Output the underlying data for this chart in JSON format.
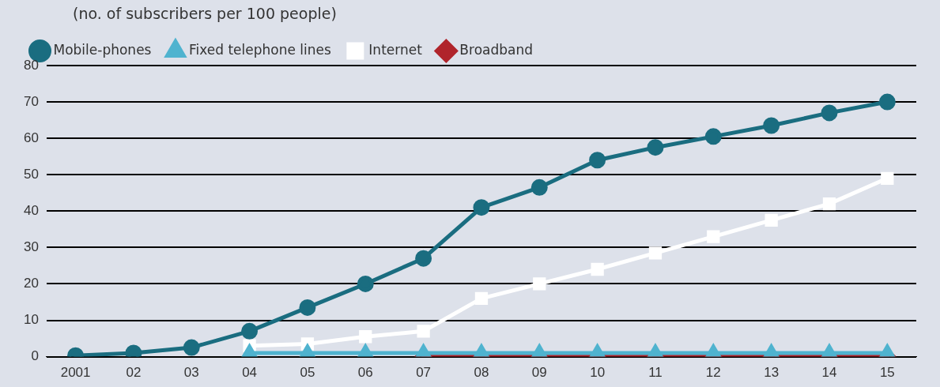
{
  "chart_data": {
    "type": "line",
    "subtitle": "(no. of subscribers per 100 people)",
    "categories": [
      "2001",
      "02",
      "03",
      "04",
      "05",
      "06",
      "07",
      "08",
      "09",
      "10",
      "11",
      "12",
      "13",
      "14",
      "15"
    ],
    "series": [
      {
        "name": "Mobile-phones",
        "color": "#1a6d80",
        "marker": "circle",
        "values": [
          0.3,
          1,
          2.5,
          7,
          13.5,
          20,
          27,
          41,
          46.5,
          54,
          57.5,
          60.5,
          63.5,
          67,
          70
        ]
      },
      {
        "name": "Fixed telephone lines",
        "color": "#4fb3cf",
        "marker": "triangle",
        "values": [
          null,
          null,
          null,
          1,
          1,
          1,
          1,
          1,
          1,
          1,
          1,
          1,
          1,
          1,
          1
        ]
      },
      {
        "name": "Internet",
        "color": "#ffffff",
        "marker": "square",
        "values": [
          null,
          null,
          null,
          3,
          3.5,
          5.5,
          7,
          16,
          20,
          24,
          28.5,
          33,
          37.5,
          42,
          49
        ]
      },
      {
        "name": "Broadband",
        "color": "#b0242b",
        "marker": "diamond",
        "values": [
          null,
          null,
          null,
          null,
          null,
          null,
          0,
          0,
          0,
          0,
          0,
          0,
          0,
          0,
          0
        ]
      }
    ],
    "ylim": [
      0,
      80
    ],
    "yticks": [
      0,
      10,
      20,
      30,
      40,
      50,
      60,
      70,
      80
    ],
    "grid": "y",
    "legend": "top left",
    "line_style": "solid"
  }
}
